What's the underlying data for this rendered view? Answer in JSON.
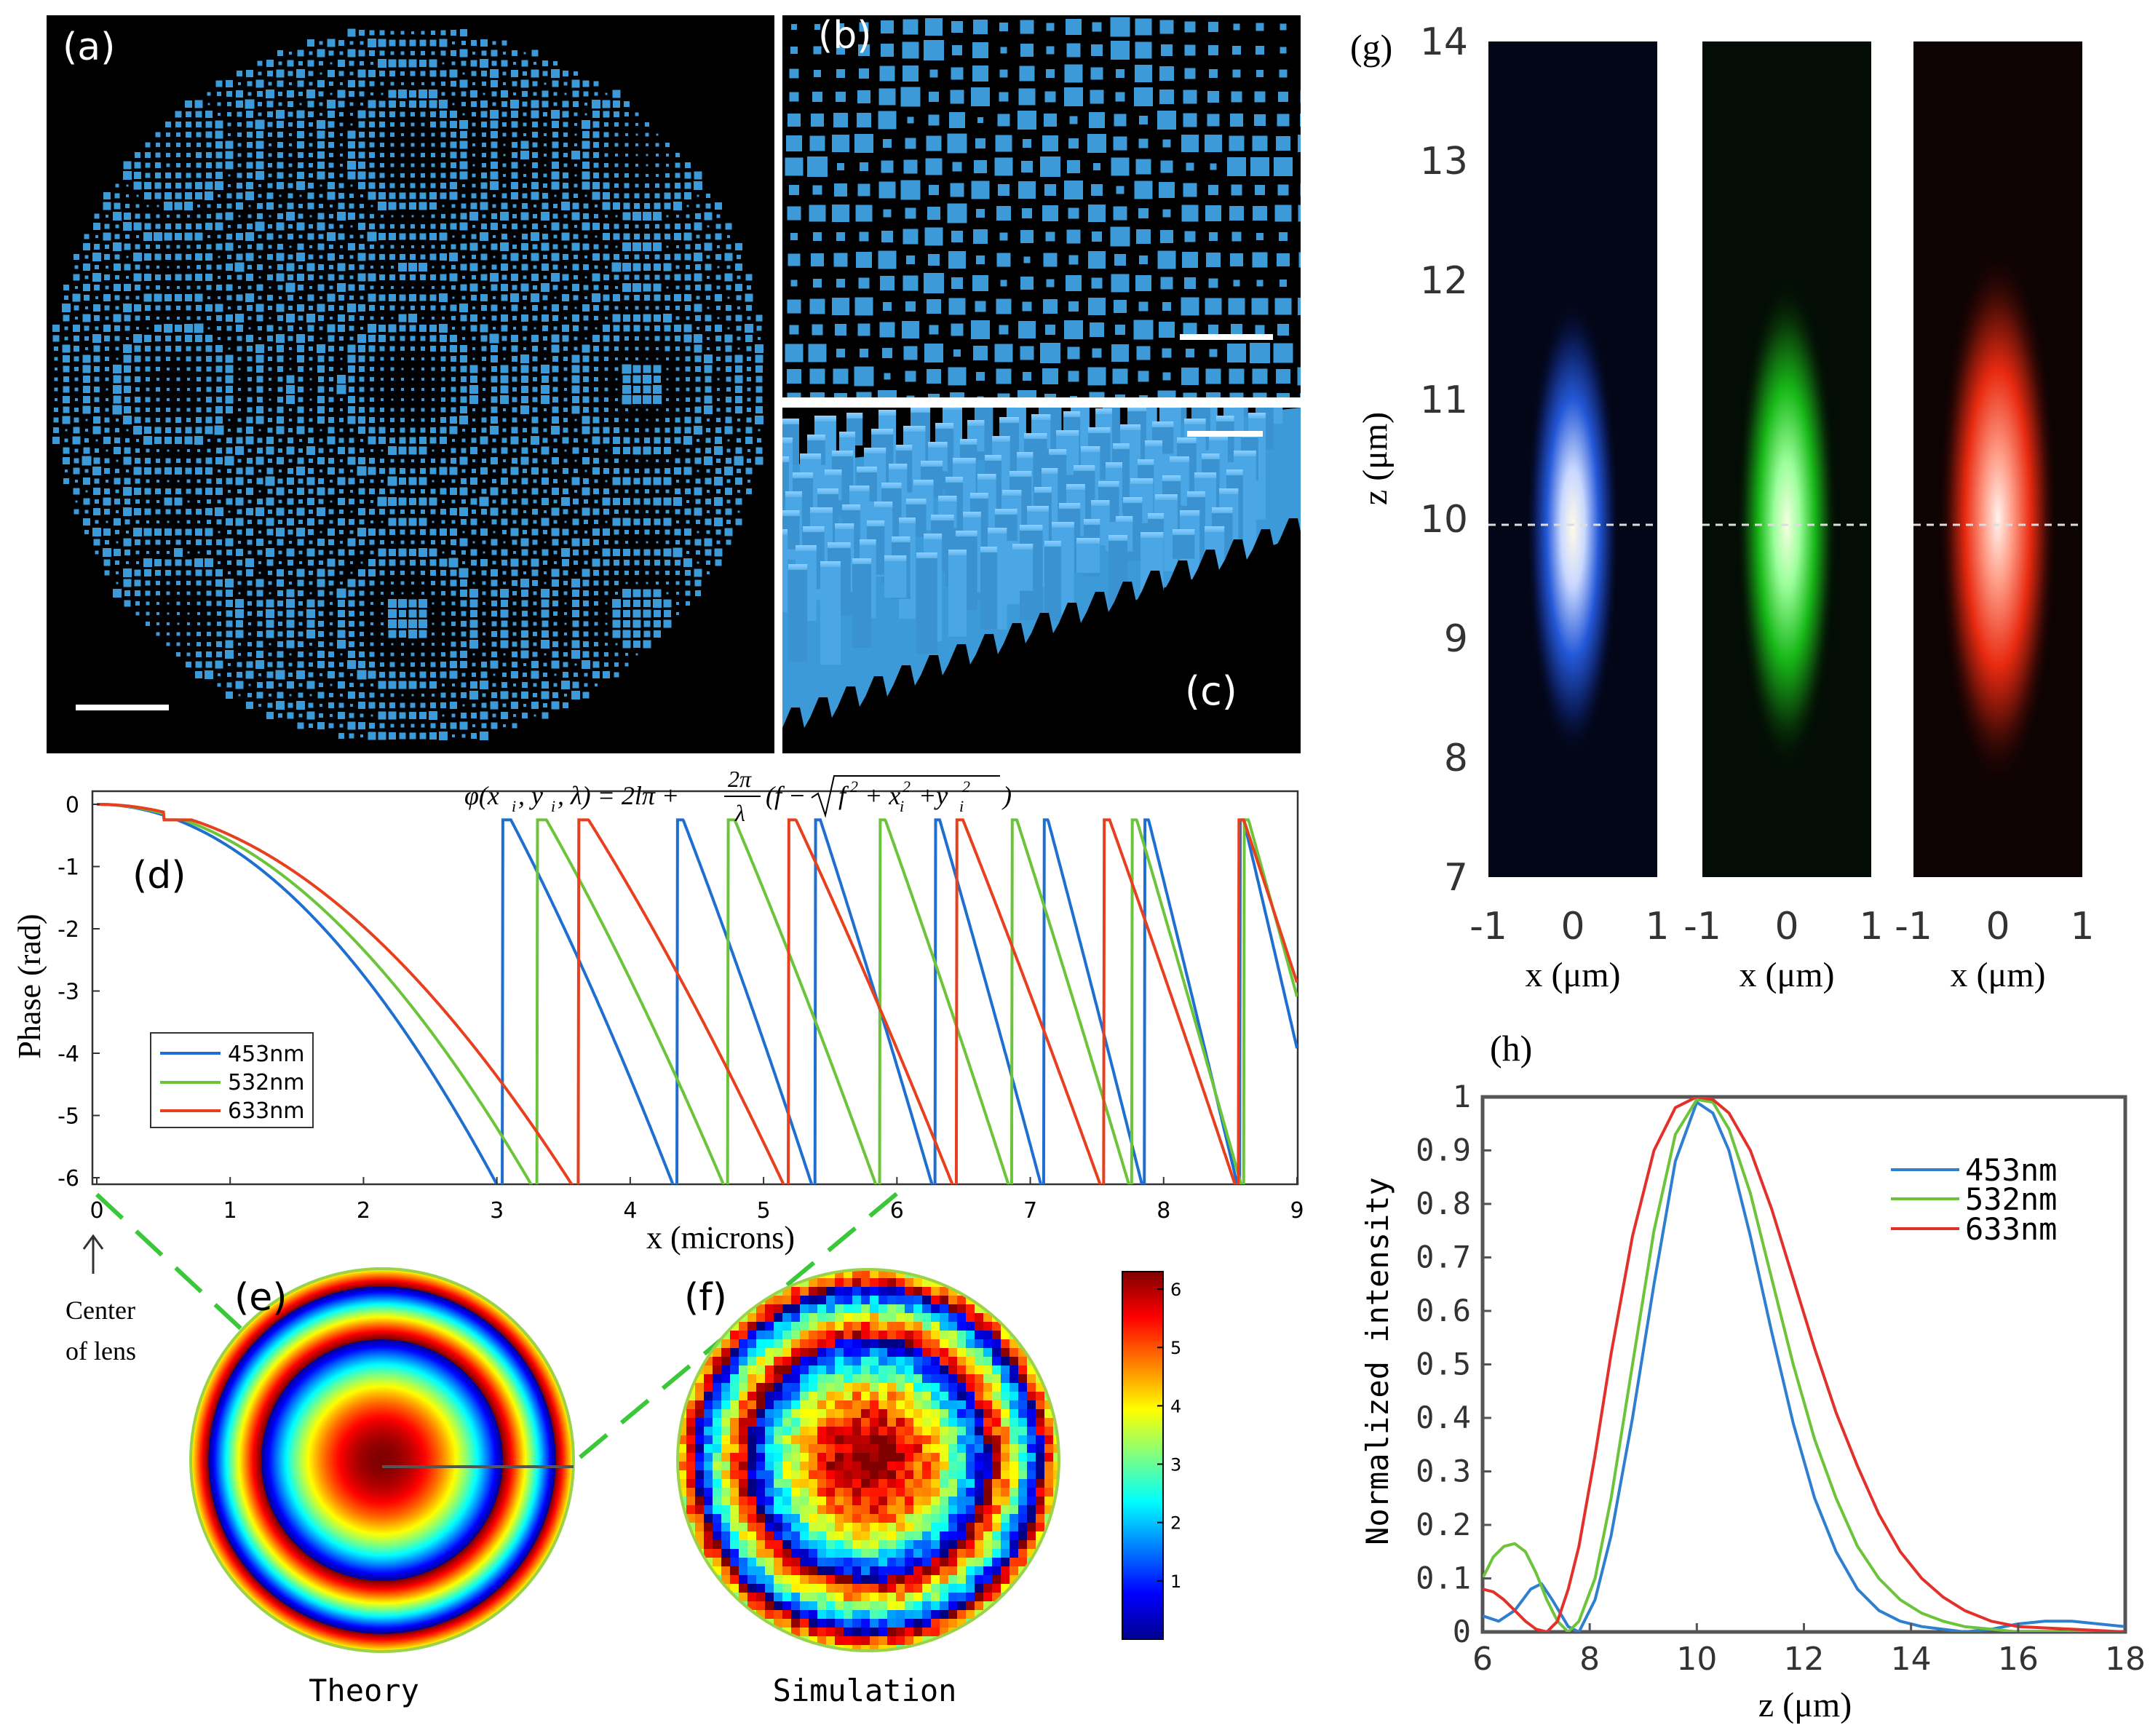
{
  "panel_labels": {
    "a": "(a)",
    "b": "(b)",
    "c": "(c)",
    "d": "(d)",
    "e": "(e)",
    "f": "(f)",
    "g": "(g)",
    "h": "(h)"
  },
  "colors": {
    "pillar": "#3d9ad8",
    "blue": "#1f6fd0",
    "green": "#6cc43a",
    "red": "#e8401f",
    "black": "#000000"
  },
  "formula": "φ(x_i, y_i, λ) = 2lπ + (2π/λ)(f − √(f² + x_i² + y_i²))",
  "formula_parts": {
    "lhs": "φ(x",
    "i1": "i",
    ", y": ", y",
    "i2": "i",
    ", λ) = 2lπ +": ", λ) = 2lπ +",
    "num": "2π",
    "den": "λ",
    "mid": "(f −",
    "sq": "f",
    "two1": "2",
    "plusx": "+ x",
    "i3": "i",
    "two2": "2",
    "plusy": "+y",
    "i4": "i",
    "two3": "2",
    "close": ")"
  },
  "annotation_center": "Center\nof lens",
  "annotation_center_lines": [
    "Center",
    "of lens"
  ],
  "caption_theory": "Theory",
  "caption_simulation": "Simulation",
  "chart_data": [
    {
      "id": "d",
      "type": "line",
      "title": "",
      "xlabel": "x (microns)",
      "ylabel": "Phase (rad)",
      "xlim": [
        0,
        9
      ],
      "ylim": [
        -6.283,
        0
      ],
      "xticks": [
        0,
        1,
        2,
        3,
        4,
        5,
        6,
        7,
        8,
        9
      ],
      "yticks": [
        0,
        -1,
        -2,
        -3,
        -4,
        -5,
        -6
      ],
      "focal_length_um": 10,
      "series": [
        {
          "name": "453nm",
          "wavelength_um": 0.453,
          "color": "#1f6fd0"
        },
        {
          "name": "532nm",
          "wavelength_um": 0.532,
          "color": "#6cc43a"
        },
        {
          "name": "633nm",
          "wavelength_um": 0.633,
          "color": "#e8401f"
        }
      ],
      "legend": [
        "453nm",
        "532nm",
        "633nm"
      ],
      "legend_position": "bottom-left"
    },
    {
      "id": "g",
      "type": "heatmap",
      "ylabel": "z (μm)",
      "xlabel": "x (μm)",
      "yticks": [
        7,
        8,
        9,
        10,
        11,
        12,
        13,
        14
      ],
      "xticks": [
        -1,
        0,
        1
      ],
      "ylim": [
        7,
        14
      ],
      "xlim": [
        -1,
        1
      ],
      "reference_line_z": 10,
      "panels": [
        {
          "name": "453nm",
          "color": "#4a8cff",
          "focus_z": 10.2
        },
        {
          "name": "532nm",
          "color": "#2cd62c",
          "focus_z": 10.3
        },
        {
          "name": "633nm",
          "color": "#ff3a1a",
          "focus_z": 10.5
        }
      ]
    },
    {
      "id": "h",
      "type": "line",
      "xlabel": "z (μm)",
      "ylabel": "Normalized intensity",
      "xlim": [
        6,
        18
      ],
      "ylim": [
        0,
        1
      ],
      "xticks": [
        6,
        8,
        10,
        12,
        14,
        16,
        18
      ],
      "yticks": [
        0,
        0.1,
        0.2,
        0.3,
        0.4,
        0.5,
        0.6,
        0.7,
        0.8,
        0.9,
        1
      ],
      "ytick_labels": [
        "0",
        "0.1",
        "0.2",
        "0.3",
        "0.4",
        "0.5",
        "0.6",
        "0.7",
        "0.8",
        "0.9",
        "1"
      ],
      "legend": [
        "453nm",
        "532nm",
        "633nm"
      ],
      "legend_position": "top-right",
      "series": [
        {
          "name": "453nm",
          "color": "#2f7fd0",
          "x": [
            6,
            6.3,
            6.6,
            6.9,
            7.1,
            7.3,
            7.6,
            7.8,
            8.1,
            8.4,
            8.8,
            9.2,
            9.6,
            10,
            10.3,
            10.6,
            11,
            11.4,
            11.8,
            12.2,
            12.6,
            13,
            13.4,
            13.8,
            14.2,
            14.6,
            15,
            15.5,
            16,
            16.5,
            17,
            17.5,
            18
          ],
          "y": [
            0.03,
            0.02,
            0.04,
            0.08,
            0.09,
            0.06,
            0.01,
            0.0,
            0.06,
            0.18,
            0.4,
            0.65,
            0.88,
            0.99,
            0.97,
            0.9,
            0.74,
            0.56,
            0.39,
            0.25,
            0.15,
            0.08,
            0.04,
            0.02,
            0.01,
            0.005,
            0.0,
            0.005,
            0.015,
            0.02,
            0.02,
            0.015,
            0.01
          ]
        },
        {
          "name": "532nm",
          "color": "#6cc43a",
          "x": [
            6,
            6.2,
            6.4,
            6.6,
            6.8,
            7,
            7.2,
            7.4,
            7.6,
            7.8,
            8.1,
            8.4,
            8.8,
            9.2,
            9.6,
            10,
            10.3,
            10.6,
            11,
            11.4,
            11.8,
            12.2,
            12.6,
            13,
            13.4,
            13.8,
            14.2,
            14.6,
            15,
            15.5,
            16,
            17,
            18
          ],
          "y": [
            0.1,
            0.14,
            0.16,
            0.165,
            0.15,
            0.11,
            0.06,
            0.02,
            0.0,
            0.02,
            0.1,
            0.25,
            0.5,
            0.75,
            0.93,
            0.995,
            0.99,
            0.94,
            0.82,
            0.66,
            0.5,
            0.36,
            0.25,
            0.16,
            0.1,
            0.06,
            0.035,
            0.02,
            0.01,
            0.005,
            0.0,
            0.0,
            0.0
          ]
        },
        {
          "name": "633nm",
          "color": "#e2312a",
          "x": [
            6,
            6.2,
            6.4,
            6.6,
            6.8,
            7,
            7.2,
            7.4,
            7.6,
            7.8,
            8.1,
            8.4,
            8.8,
            9.2,
            9.6,
            10,
            10.3,
            10.6,
            11,
            11.4,
            11.8,
            12.2,
            12.6,
            13,
            13.4,
            13.8,
            14.2,
            14.6,
            15,
            15.5,
            16,
            17,
            18
          ],
          "y": [
            0.08,
            0.075,
            0.06,
            0.04,
            0.02,
            0.005,
            0.0,
            0.02,
            0.08,
            0.16,
            0.33,
            0.52,
            0.74,
            0.9,
            0.98,
            1.0,
            0.995,
            0.97,
            0.9,
            0.79,
            0.66,
            0.53,
            0.41,
            0.31,
            0.22,
            0.15,
            0.1,
            0.065,
            0.04,
            0.02,
            0.01,
            0.005,
            0.0
          ]
        }
      ]
    },
    {
      "id": "colorbar",
      "type": "colorbar",
      "range": [
        0,
        6.3
      ],
      "ticks": [
        1,
        2,
        3,
        4,
        5,
        6
      ],
      "tick_labels": [
        "1",
        "2",
        "3",
        "4",
        "5",
        "6"
      ]
    }
  ]
}
